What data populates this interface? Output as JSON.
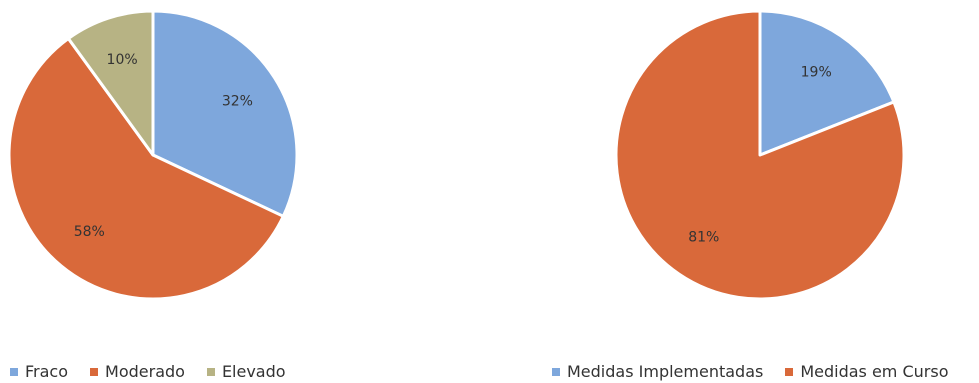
{
  "chart_data": [
    {
      "type": "pie",
      "categories": [
        "Fraco",
        "Moderado",
        "Elevado"
      ],
      "values": [
        32,
        58,
        10
      ],
      "labels": [
        "32%",
        "58%",
        "10%"
      ],
      "colors": [
        "#7ea7dc",
        "#d9693a",
        "#b7b384"
      ],
      "legend_position": "bottom"
    },
    {
      "type": "pie",
      "categories": [
        "Medidas Implementadas",
        "Medidas em Curso"
      ],
      "values": [
        19,
        81
      ],
      "labels": [
        "19%",
        "81%"
      ],
      "colors": [
        "#7ea7dc",
        "#d9693a"
      ],
      "legend_position": "bottom"
    }
  ]
}
